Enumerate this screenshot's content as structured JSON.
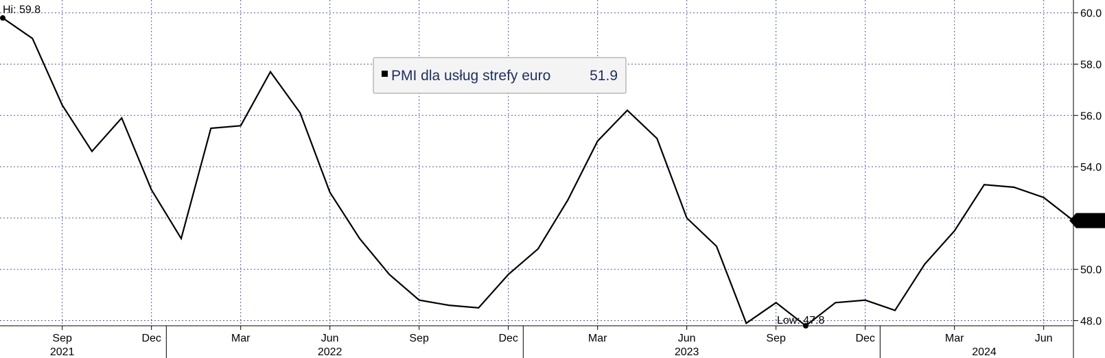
{
  "chart_data": {
    "type": "line",
    "series": [
      {
        "name": "PMI dla usług strefy euro",
        "last_value_label": "51.9",
        "color": "#000000",
        "values": [
          59.8,
          59.0,
          56.4,
          54.6,
          55.9,
          53.1,
          51.2,
          55.5,
          55.6,
          57.7,
          56.1,
          53.0,
          51.2,
          49.8,
          48.8,
          48.6,
          48.5,
          49.8,
          50.8,
          52.7,
          55.0,
          56.2,
          55.1,
          52.0,
          50.9,
          47.9,
          48.7,
          47.8,
          48.7,
          48.8,
          48.4,
          50.2,
          51.5,
          53.3,
          53.2,
          52.8,
          51.9
        ]
      }
    ],
    "x_dates": [
      "2021-07",
      "2021-08",
      "2021-09",
      "2021-10",
      "2021-11",
      "2021-12",
      "2022-01",
      "2022-02",
      "2022-03",
      "2022-04",
      "2022-05",
      "2022-06",
      "2022-07",
      "2022-08",
      "2022-09",
      "2022-10",
      "2022-11",
      "2022-12",
      "2023-01",
      "2023-02",
      "2023-03",
      "2023-04",
      "2023-05",
      "2023-06",
      "2023-07",
      "2023-08",
      "2023-09",
      "2023-10",
      "2023-11",
      "2023-12",
      "2024-01",
      "2024-02",
      "2024-03",
      "2024-04",
      "2024-05",
      "2024-06",
      "2024-07"
    ],
    "x_month_ticks": [
      {
        "date": "2021-09",
        "label": "Sep"
      },
      {
        "date": "2021-12",
        "label": "Dec"
      },
      {
        "date": "2022-03",
        "label": "Mar"
      },
      {
        "date": "2022-06",
        "label": "Jun"
      },
      {
        "date": "2022-09",
        "label": "Sep"
      },
      {
        "date": "2022-12",
        "label": "Dec"
      },
      {
        "date": "2023-03",
        "label": "Mar"
      },
      {
        "date": "2023-06",
        "label": "Jun"
      },
      {
        "date": "2023-09",
        "label": "Sep"
      },
      {
        "date": "2023-12",
        "label": "Dec"
      },
      {
        "date": "2024-03",
        "label": "Mar"
      },
      {
        "date": "2024-06",
        "label": "Jun"
      }
    ],
    "x_year_ticks": [
      {
        "date": "2021-09",
        "label": "2021"
      },
      {
        "date": "2022-06",
        "label": "2022"
      },
      {
        "date": "2023-06",
        "label": "2023"
      },
      {
        "date": "2024-04",
        "label": "2024"
      }
    ],
    "x_year_boundaries": [
      "2022-01",
      "2023-01",
      "2024-01"
    ],
    "y_ticks": [
      {
        "value": 48,
        "label": "48.0"
      },
      {
        "value": 50,
        "label": "50.0"
      },
      {
        "value": 52,
        "label": "52.0"
      },
      {
        "value": 54,
        "label": "54.0"
      },
      {
        "value": 56,
        "label": "56.0"
      },
      {
        "value": 58,
        "label": "58.0"
      },
      {
        "value": 60,
        "label": "60.0"
      }
    ],
    "ylim": [
      47.8,
      60.5
    ],
    "y_axis_side": "right",
    "grid": true,
    "legend_placement": "top-center",
    "annotations": {
      "high": {
        "text": "Hi: 59.8",
        "date": "2021-07",
        "value": 59.8
      },
      "low": {
        "text": "Low: 47.8",
        "date": "2023-10",
        "value": 47.8
      }
    }
  }
}
